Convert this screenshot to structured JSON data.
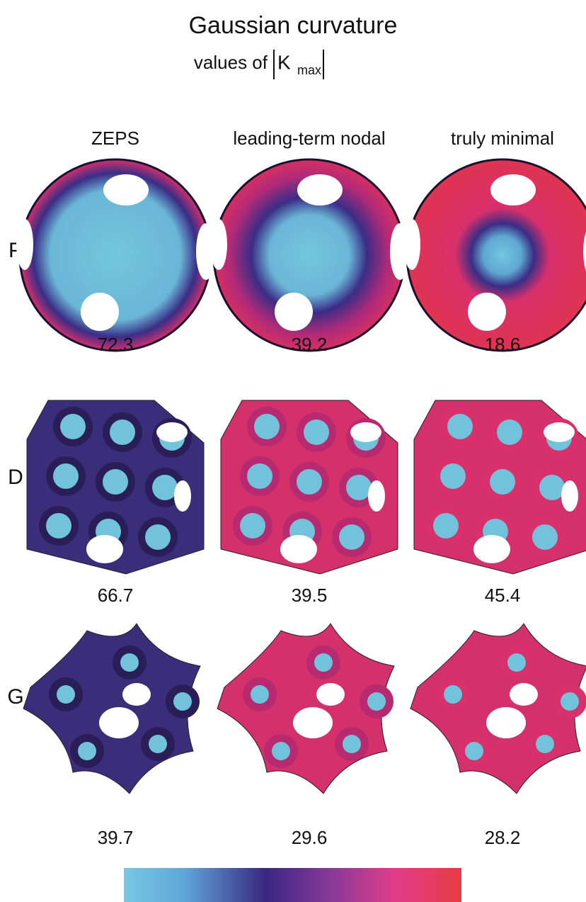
{
  "title": "Gaussian curvature",
  "subtitle": {
    "prefix": "values of",
    "symbol": "K",
    "subscript": "max"
  },
  "columns": [
    "ZEPS",
    "leading-term nodal",
    "truly minimal"
  ],
  "rows": [
    {
      "label": "P",
      "values": [
        72.3,
        39.2,
        18.6
      ]
    },
    {
      "label": "D",
      "values": [
        66.7,
        39.5,
        45.4
      ]
    },
    {
      "label": "G",
      "values": [
        39.7,
        29.6,
        28.2
      ]
    }
  ]
}
